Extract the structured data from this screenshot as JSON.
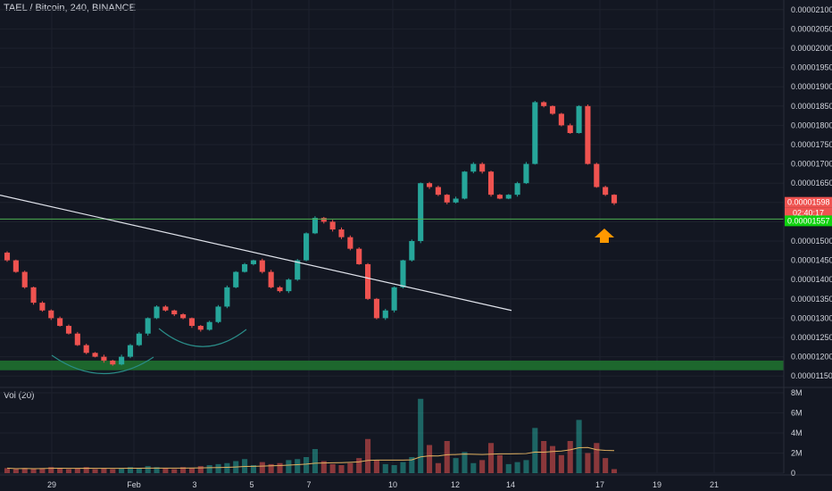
{
  "header": {
    "title": "TAEL / Bitcoin, 240, BINANCE"
  },
  "volume_panel": {
    "title": "Vol (20)"
  },
  "colors": {
    "background": "#131722",
    "up": "#26a69a",
    "down": "#ef5350",
    "support_zone": "#1e6b2e",
    "horizontal_line": "#4caf50",
    "trend_line": "#e0e3eb",
    "arc": "#2a8c88",
    "arrow": "#ff9800",
    "volume_ma": "#e0b060",
    "grid": "#1e222d"
  },
  "price_tags": {
    "last_price": "0.00001598",
    "countdown": "02:40:17",
    "line_price": "0.00001557"
  },
  "annotations": {
    "arrow_icon": "arrow-up-icon"
  },
  "chart_data": [
    {
      "type": "candlestick",
      "title": "TAEL / Bitcoin, 240, BINANCE",
      "y_ticks": [
        "0.00002100",
        "0.00002050",
        "0.00002000",
        "0.00001950",
        "0.00001900",
        "0.00001850",
        "0.00001800",
        "0.00001750",
        "0.00001700",
        "0.00001650",
        "0.00001600",
        "0.00001550",
        "0.00001500",
        "0.00001450",
        "0.00001400",
        "0.00001350",
        "0.00001300",
        "0.00001250",
        "0.00001200",
        "0.00001150"
      ],
      "ylim": [
        1.125e-05,
        2.125e-05
      ],
      "x_ticks": [
        "29",
        "Feb",
        "3",
        "5",
        "7",
        "10",
        "12",
        "14",
        "17",
        "19",
        "21"
      ],
      "horizontal_line": 1.557e-05,
      "support_zone": [
        1.165e-05,
        1.19e-05
      ],
      "trend_line": {
        "from": [
          "28",
          1.619e-05
        ],
        "to": [
          "15",
          1.32e-05
        ]
      },
      "series": {
        "close_path": [
          1.45e-05,
          1.42e-05,
          1.38e-05,
          1.34e-05,
          1.32e-05,
          1.3e-05,
          1.28e-05,
          1.26e-05,
          1.23e-05,
          1.21e-05,
          1.2e-05,
          1.19e-05,
          1.18e-05,
          1.2e-05,
          1.23e-05,
          1.26e-05,
          1.3e-05,
          1.33e-05,
          1.32e-05,
          1.31e-05,
          1.3e-05,
          1.28e-05,
          1.27e-05,
          1.29e-05,
          1.33e-05,
          1.38e-05,
          1.42e-05,
          1.44e-05,
          1.45e-05,
          1.42e-05,
          1.38e-05,
          1.37e-05,
          1.4e-05,
          1.45e-05,
          1.52e-05,
          1.56e-05,
          1.55e-05,
          1.53e-05,
          1.51e-05,
          1.48e-05,
          1.44e-05,
          1.35e-05,
          1.3e-05,
          1.32e-05,
          1.38e-05,
          1.45e-05,
          1.5e-05,
          1.65e-05,
          1.64e-05,
          1.62e-05,
          1.6e-05,
          1.61e-05,
          1.68e-05,
          1.7e-05,
          1.68e-05,
          1.62e-05,
          1.61e-05,
          1.62e-05,
          1.65e-05,
          1.7e-05,
          1.86e-05,
          1.85e-05,
          1.83e-05,
          1.8e-05,
          1.78e-05,
          1.85e-05,
          1.7e-05,
          1.64e-05,
          1.62e-05,
          1.598e-05
        ],
        "volume_m": [
          0.5,
          0.4,
          0.5,
          0.4,
          0.5,
          0.6,
          0.5,
          0.4,
          0.5,
          0.6,
          0.4,
          0.5,
          0.4,
          0.5,
          0.6,
          0.5,
          0.7,
          0.6,
          0.5,
          0.4,
          0.6,
          0.5,
          0.7,
          0.8,
          0.9,
          1.0,
          1.2,
          1.4,
          0.8,
          1.1,
          0.9,
          1.0,
          1.3,
          1.4,
          1.6,
          2.4,
          1.2,
          0.9,
          0.8,
          1.0,
          1.5,
          3.4,
          1.3,
          0.9,
          0.8,
          1.1,
          1.6,
          7.4,
          2.8,
          1.0,
          3.2,
          1.5,
          2.1,
          1.0,
          1.3,
          3.0,
          1.8,
          0.9,
          1.1,
          1.3,
          4.5,
          3.2,
          2.7,
          1.8,
          3.2,
          5.3,
          2.0,
          3.0,
          1.5,
          0.4
        ]
      }
    },
    {
      "type": "bar",
      "title": "Vol (20)",
      "y_ticks": [
        "8M",
        "6M",
        "4M",
        "2M",
        "0"
      ],
      "ylim": [
        0,
        8
      ],
      "moving_average_length": 20
    }
  ]
}
